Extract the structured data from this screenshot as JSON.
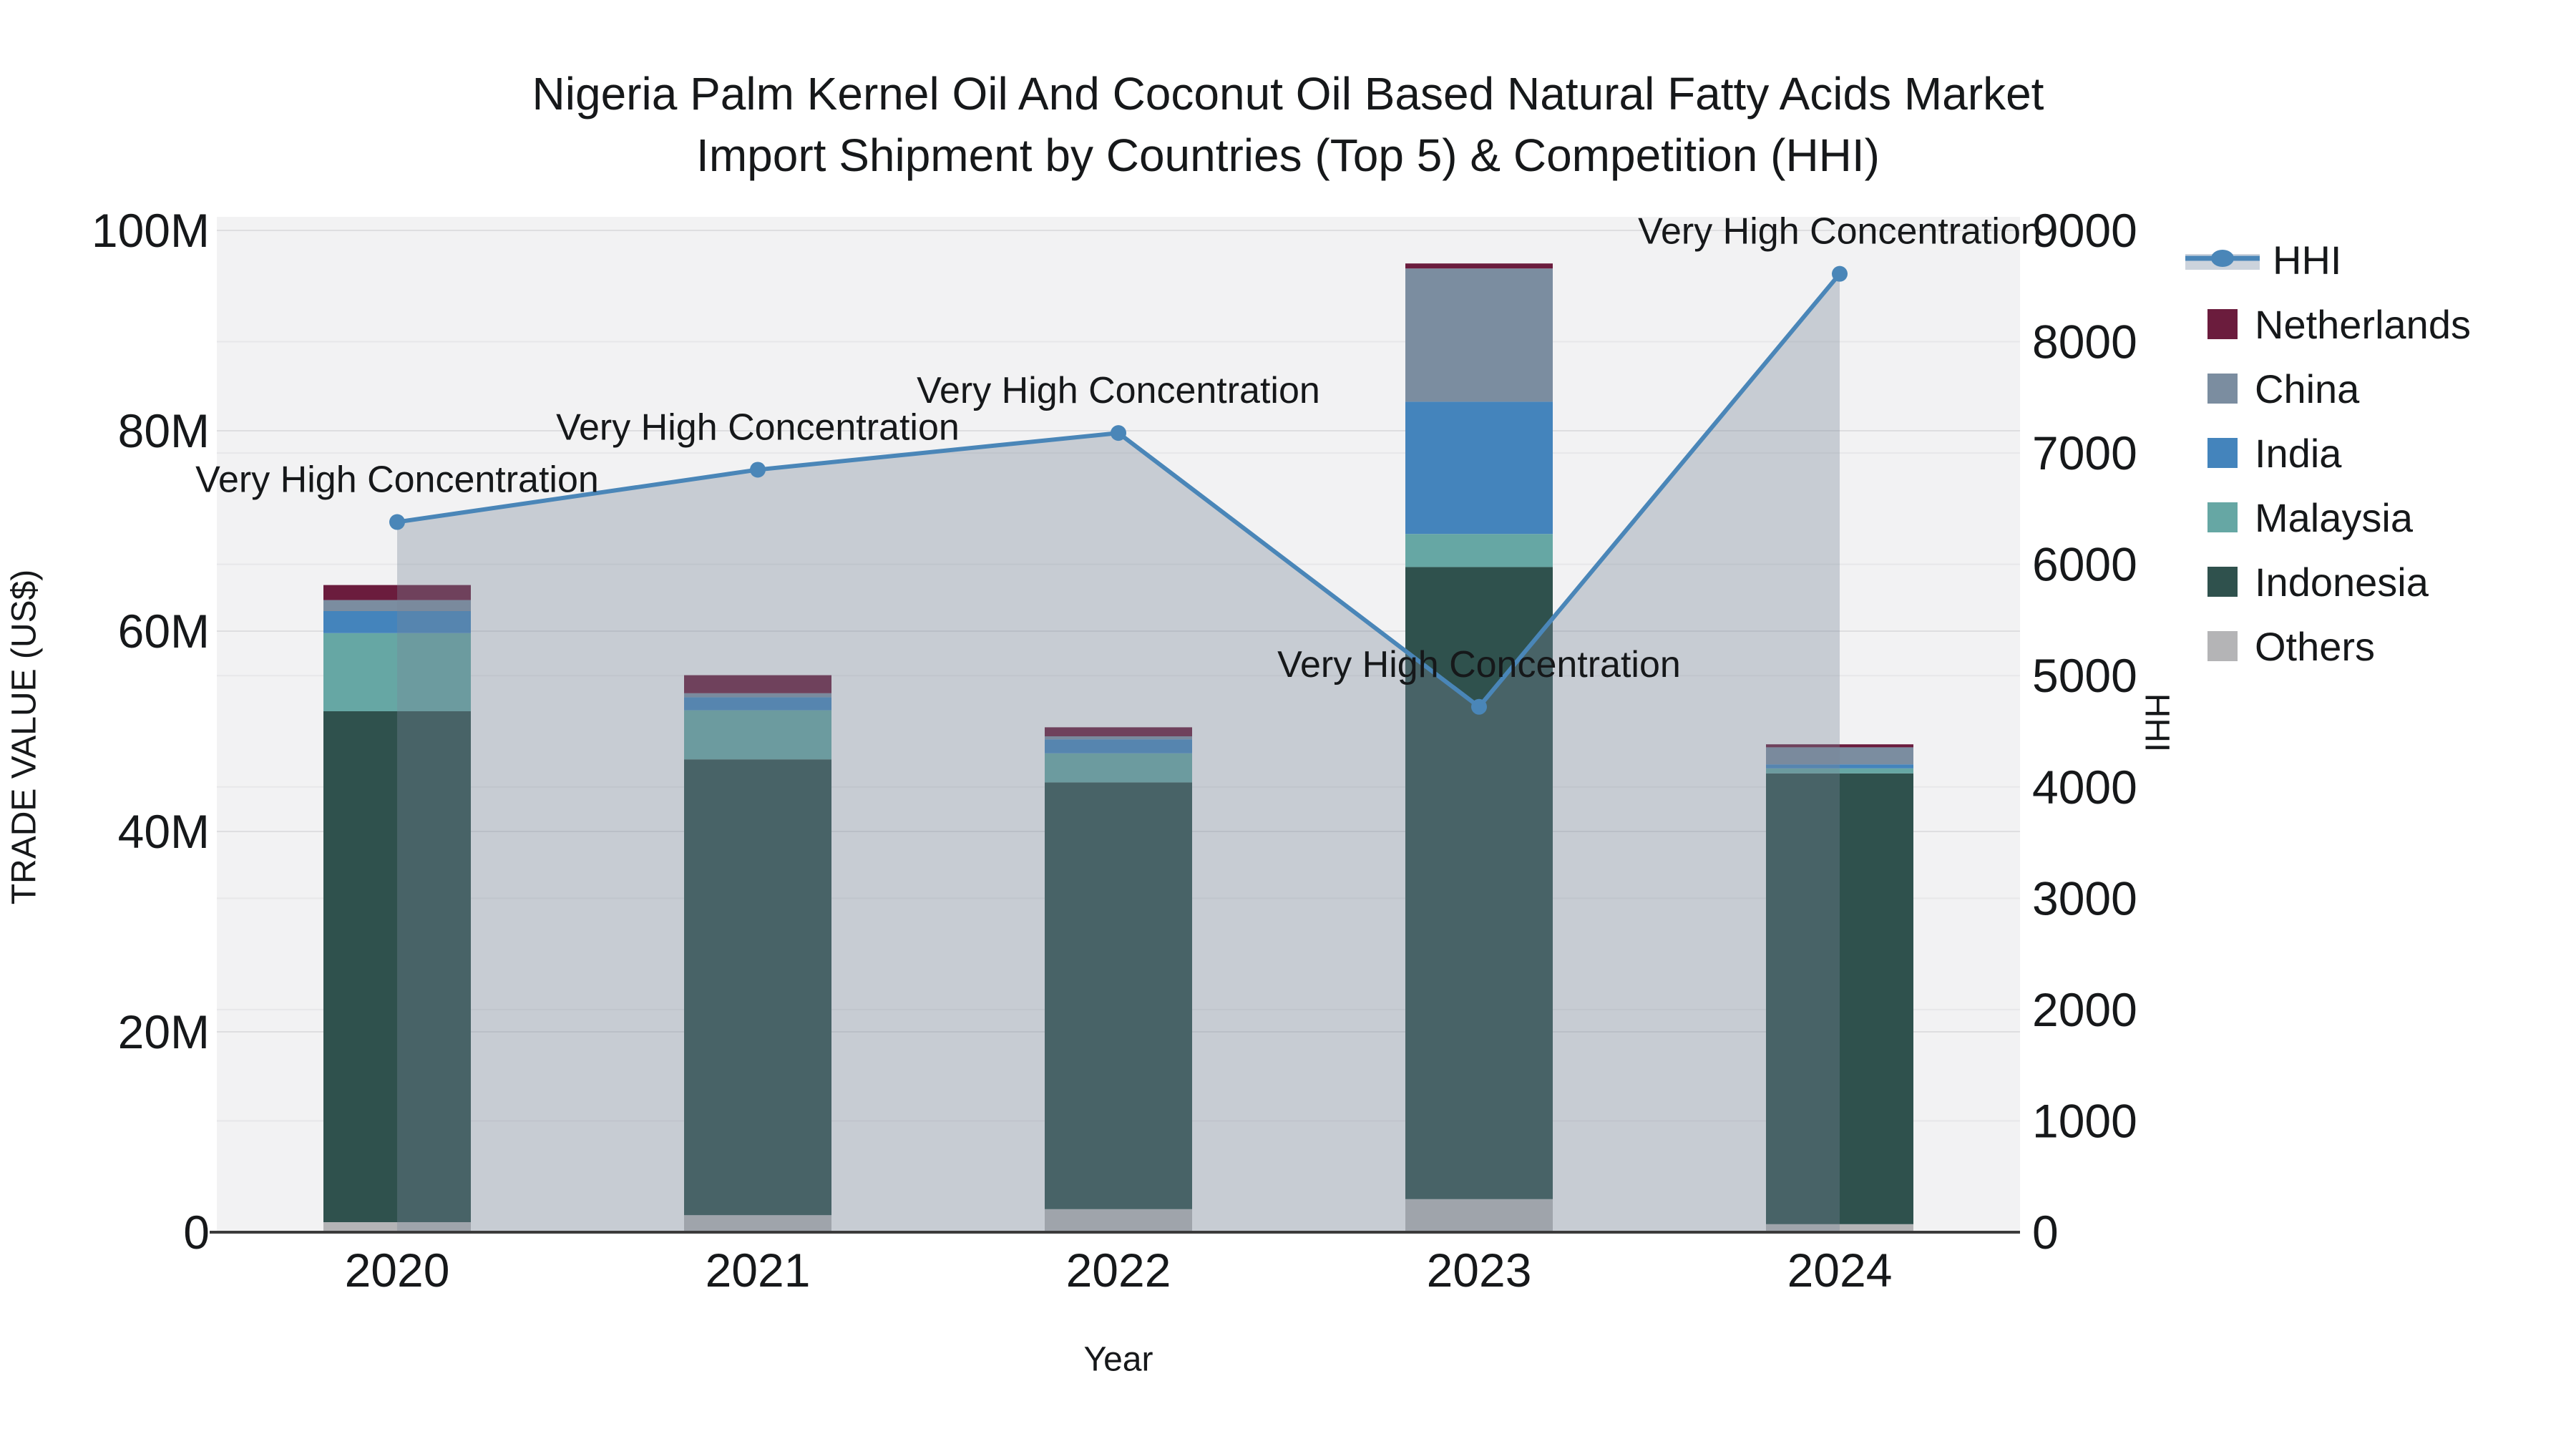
{
  "title": {
    "line1": "Nigeria Palm Kernel Oil And Coconut Oil Based Natural Fatty Acids Market",
    "line2": "Import Shipment by Countries (Top 5) & Competition (HHI)"
  },
  "axes": {
    "x": {
      "title": "Year",
      "ticks": [
        "2020",
        "2021",
        "2022",
        "2023",
        "2024"
      ]
    },
    "y_left": {
      "title": "TRADE VALUE (US$)",
      "ticks": [
        "0",
        "20M",
        "40M",
        "60M",
        "80M",
        "100M"
      ],
      "max_millions": 100
    },
    "y_right": {
      "title": "HHI",
      "ticks": [
        "0",
        "1000",
        "2000",
        "3000",
        "4000",
        "5000",
        "6000",
        "7000",
        "8000",
        "9000"
      ],
      "max": 9000
    }
  },
  "legend": [
    {
      "label": "HHI",
      "type": "line",
      "color": "#4a86b8",
      "band": "#ccd3dc"
    },
    {
      "label": "Netherlands",
      "type": "swatch",
      "color": "#6b1c3d"
    },
    {
      "label": "China",
      "type": "swatch",
      "color": "#7b8da0"
    },
    {
      "label": "India",
      "type": "swatch",
      "color": "#4484bc"
    },
    {
      "label": "Malaysia",
      "type": "swatch",
      "color": "#66a7a4"
    },
    {
      "label": "Indonesia",
      "type": "swatch",
      "color": "#2f514d"
    },
    {
      "label": "Others",
      "type": "swatch",
      "color": "#b4b4b6"
    }
  ],
  "chart_data": {
    "type": "bar+line",
    "title": "Nigeria Palm Kernel Oil And Coconut Oil Based Natural Fatty Acids Market Import Shipment by Countries (Top 5) & Competition (HHI)",
    "xlabel": "Year",
    "ylabel_left": "TRADE VALUE (US$)",
    "ylabel_right": "HHI",
    "categories": [
      "2020",
      "2021",
      "2022",
      "2023",
      "2024"
    ],
    "bar_units": "millions USD",
    "stack_order_bottom_to_top": [
      "Others",
      "Indonesia",
      "Malaysia",
      "India",
      "China",
      "Netherlands"
    ],
    "series": [
      {
        "name": "Others",
        "color": "#b4b4b6",
        "values": [
          1.0,
          1.7,
          2.3,
          3.3,
          0.8
        ]
      },
      {
        "name": "Indonesia",
        "color": "#2f514d",
        "values": [
          51.0,
          45.5,
          42.6,
          63.1,
          45.0
        ]
      },
      {
        "name": "Malaysia",
        "color": "#66a7a4",
        "values": [
          7.8,
          4.9,
          2.9,
          3.3,
          0.5
        ]
      },
      {
        "name": "India",
        "color": "#4484bc",
        "values": [
          2.2,
          1.3,
          1.4,
          13.2,
          0.4
        ]
      },
      {
        "name": "China",
        "color": "#7b8da0",
        "values": [
          1.1,
          0.4,
          0.3,
          13.3,
          1.7
        ]
      },
      {
        "name": "Netherlands",
        "color": "#6b1c3d",
        "values": [
          1.5,
          1.8,
          0.9,
          0.5,
          0.3
        ]
      }
    ],
    "bar_totals_millions": [
      64.6,
      55.6,
      50.4,
      96.7,
      48.7
    ],
    "line_series": {
      "name": "HHI",
      "axis": "right",
      "color": "#4a86b8",
      "area_fill": "rgba(120,134,152,0.35)",
      "values": [
        6380,
        6850,
        7180,
        4720,
        8610
      ]
    },
    "annotations": [
      {
        "year": "2020",
        "text": "Very High Concentration"
      },
      {
        "year": "2021",
        "text": "Very High Concentration"
      },
      {
        "year": "2022",
        "text": "Very High Concentration"
      },
      {
        "year": "2023",
        "text": "Very High Concentration"
      },
      {
        "year": "2024",
        "text": "Very High Concentration"
      }
    ],
    "ylim_left_millions": [
      0,
      100
    ],
    "ylim_right": [
      0,
      9000
    ],
    "grid": true,
    "legend_position": "right",
    "plot_bg": "#f2f2f3"
  }
}
